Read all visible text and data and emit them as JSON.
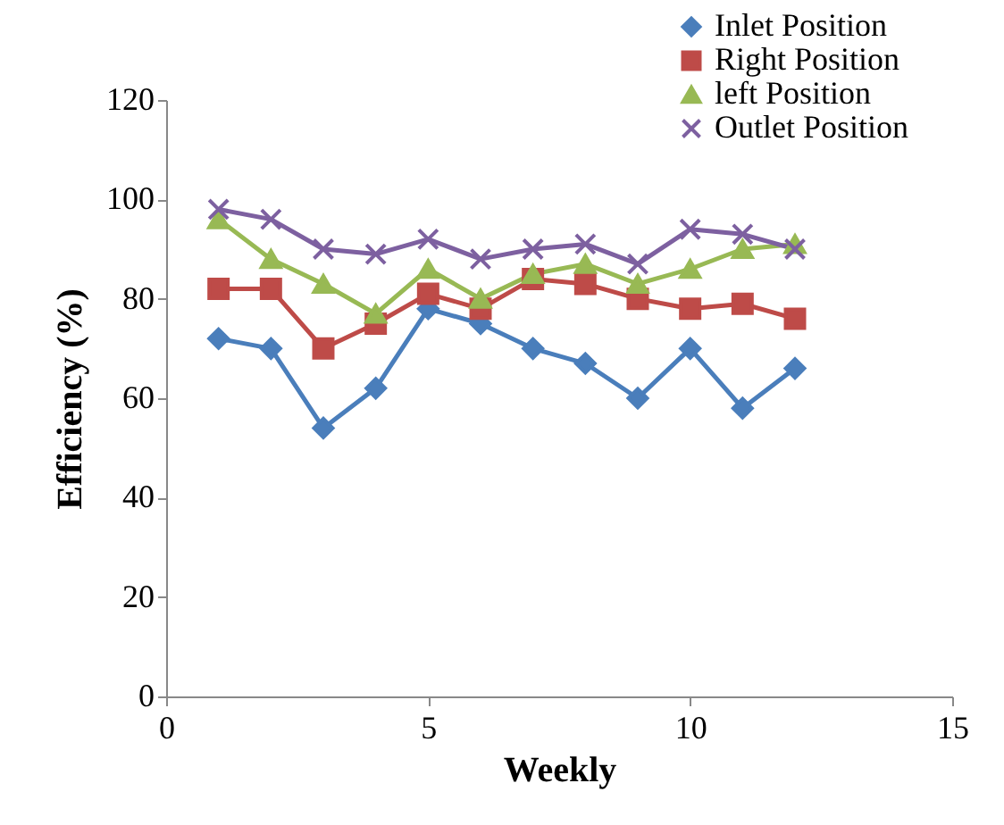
{
  "chart_data": {
    "type": "line",
    "xlabel": "Weekly",
    "ylabel": "Efficiency (%)",
    "x": [
      1,
      2,
      3,
      4,
      5,
      6,
      7,
      8,
      9,
      10,
      11,
      12
    ],
    "series": [
      {
        "name": "Inlet Position",
        "color": "#4a7ebb",
        "marker": "diamond",
        "values": [
          72,
          70,
          54,
          62,
          78,
          75,
          70,
          67,
          60,
          70,
          58,
          66
        ]
      },
      {
        "name": "Right Position",
        "color": "#be4b48",
        "marker": "square",
        "values": [
          82,
          82,
          70,
          75,
          81,
          78,
          84,
          83,
          80,
          78,
          79,
          76
        ]
      },
      {
        "name": "left Position",
        "color": "#98b954",
        "marker": "triangle",
        "values": [
          96,
          88,
          83,
          77,
          86,
          80,
          85,
          87,
          83,
          86,
          90,
          91
        ]
      },
      {
        "name": "Outlet Position",
        "color": "#7d60a0",
        "marker": "cross",
        "values": [
          98,
          96,
          90,
          89,
          92,
          88,
          90,
          91,
          87,
          94,
          93,
          90
        ]
      }
    ],
    "xlim": [
      0,
      15
    ],
    "xticks": [
      0,
      5,
      10,
      15
    ],
    "ylim": [
      0,
      120
    ],
    "yticks": [
      0,
      20,
      40,
      60,
      80,
      100,
      120
    ],
    "grid": false,
    "legend": "top right",
    "line_style": "solid"
  }
}
